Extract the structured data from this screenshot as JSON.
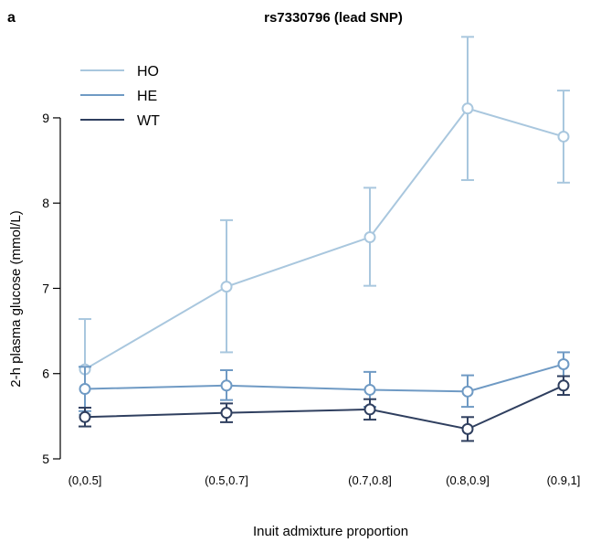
{
  "panel_label": "a",
  "chart_data": {
    "type": "line",
    "title": "rs7330796 (lead SNP)",
    "xlabel": "Inuit admixture proportion",
    "ylabel": "2-h plasma glucose (mmol/L)",
    "categories": [
      "(0,0.5]",
      "(0.5,0.7]",
      "(0.7,0.8]",
      "(0.8,0.9]",
      "(0.9,1]"
    ],
    "ylim": [
      5,
      9.9
    ],
    "yticks": [
      5,
      6,
      7,
      8,
      9
    ],
    "grid": false,
    "legend_position": "top-left",
    "series": [
      {
        "name": "HO",
        "color": "#a9c7de",
        "values": [
          6.05,
          7.02,
          7.6,
          9.11,
          8.78
        ],
        "lower": [
          5.52,
          6.25,
          7.03,
          8.27,
          8.24
        ],
        "upper": [
          6.64,
          7.8,
          8.18,
          9.95,
          9.32
        ]
      },
      {
        "name": "HE",
        "color": "#6f9ac4",
        "values": [
          5.82,
          5.86,
          5.81,
          5.79,
          6.11
        ],
        "lower": [
          5.56,
          5.69,
          5.61,
          5.61,
          5.97
        ],
        "upper": [
          6.08,
          6.04,
          6.02,
          5.98,
          6.25
        ]
      },
      {
        "name": "WT",
        "color": "#2f3f5f",
        "values": [
          5.49,
          5.54,
          5.58,
          5.35,
          5.86
        ],
        "lower": [
          5.38,
          5.43,
          5.46,
          5.21,
          5.75
        ],
        "upper": [
          5.6,
          5.65,
          5.7,
          5.49,
          5.97
        ]
      }
    ]
  }
}
